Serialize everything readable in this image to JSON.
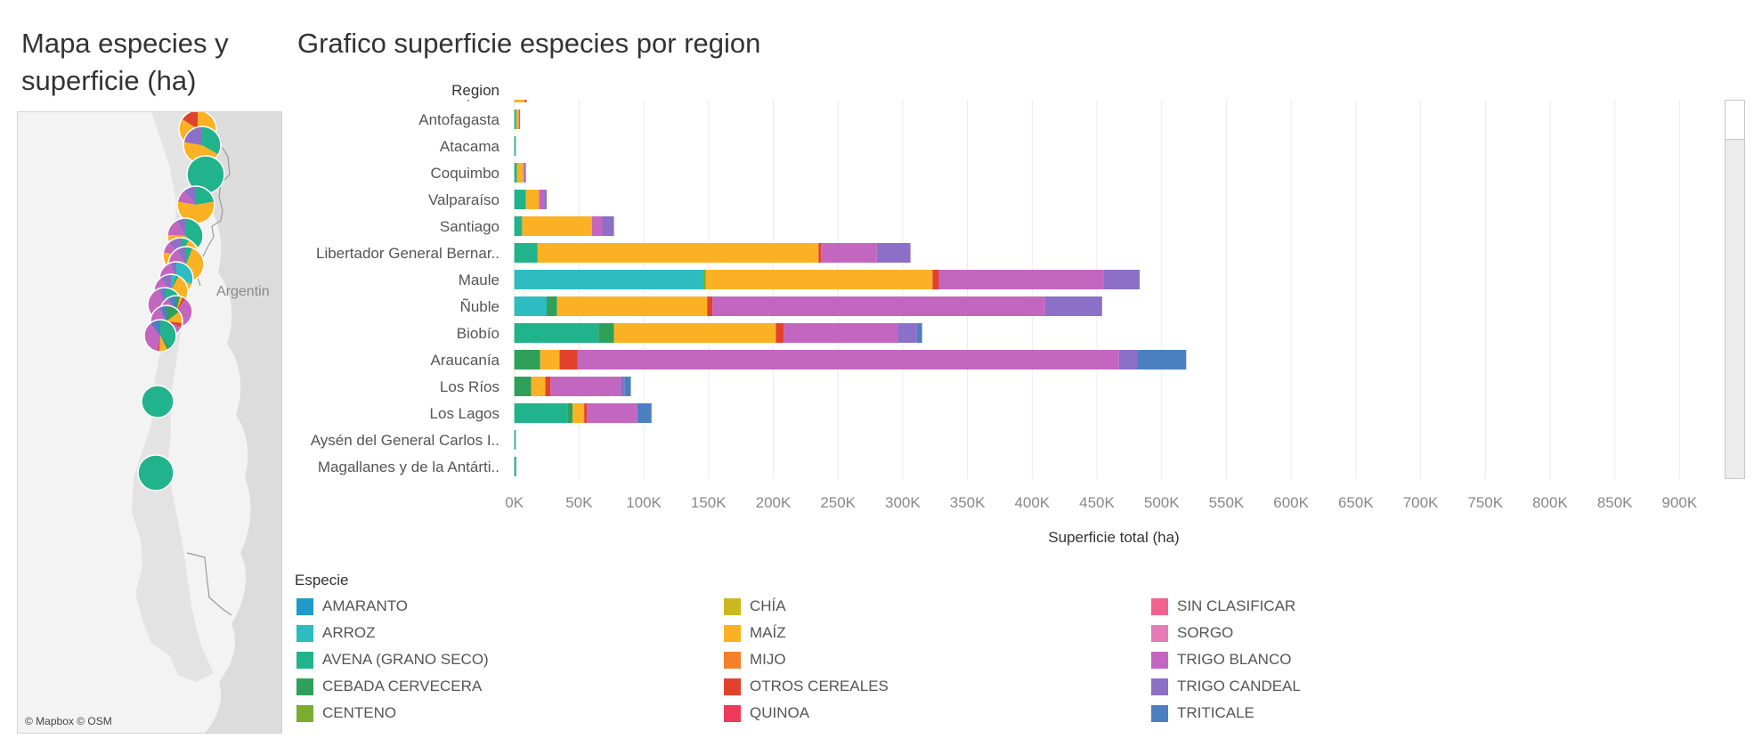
{
  "map": {
    "title": "Mapa especies y superficie (ha)",
    "country_label": "Argentin",
    "credit": "© Mapbox © OSM"
  },
  "chart_data": {
    "type": "bar",
    "orientation": "horizontal",
    "stacked": true,
    "title": "Grafico superficie especies por region",
    "xlabel": "Superficie total (ha)",
    "ylabel": "Region",
    "xlim": [
      -8000,
      930000
    ],
    "xticks": [
      0,
      50000,
      100000,
      150000,
      200000,
      250000,
      300000,
      350000,
      400000,
      450000,
      500000,
      550000,
      600000,
      650000,
      700000,
      750000,
      800000,
      850000,
      900000
    ],
    "xtick_labels": [
      "0K",
      "50K",
      "100K",
      "150K",
      "200K",
      "250K",
      "300K",
      "350K",
      "400K",
      "450K",
      "500K",
      "550K",
      "600K",
      "650K",
      "700K",
      "750K",
      "800K",
      "850K",
      "900K"
    ],
    "grid": true,
    "legend_title": "Especie",
    "legend_position": "bottom",
    "categories": [
      "Tarapacá",
      "Antofagasta",
      "Atacama",
      "Coquimbo",
      "Valparaíso",
      "Santiago",
      "Libertador General Bernar..",
      "Maule",
      "Ñuble",
      "Biobío",
      "Araucanía",
      "Los Ríos",
      "Los Lagos",
      "Aysén del General Carlos I..",
      "Magallanes y de la Antárti.."
    ],
    "series": [
      {
        "name": "AMARANTO",
        "color": "#1f9ac9",
        "values": [
          0,
          0,
          0,
          0,
          0,
          0,
          0,
          0,
          0,
          0,
          0,
          0,
          0,
          0,
          0
        ]
      },
      {
        "name": "ARROZ",
        "color": "#2dbdc0",
        "values": [
          0,
          0,
          0,
          0,
          0,
          0,
          0,
          146000,
          25000,
          0,
          0,
          0,
          0,
          0,
          0
        ]
      },
      {
        "name": "AVENA (GRANO SECO)",
        "color": "#21b38b",
        "values": [
          0,
          1500,
          1200,
          2000,
          9000,
          6000,
          18000,
          0,
          0,
          65000,
          0,
          0,
          41000,
          1200,
          1500
        ]
      },
      {
        "name": "CEBADA CERVECERA",
        "color": "#2ea05a",
        "values": [
          0,
          0,
          0,
          0,
          0,
          0,
          0,
          0,
          8000,
          12000,
          20000,
          13000,
          4000,
          0,
          0
        ]
      },
      {
        "name": "CENTENO",
        "color": "#78ad2e",
        "values": [
          0,
          0,
          0,
          0,
          0,
          0,
          0,
          2000,
          0,
          0,
          0,
          0,
          0,
          0,
          0
        ]
      },
      {
        "name": "CHÍA",
        "color": "#c9b820",
        "values": [
          0,
          0,
          0,
          0,
          0,
          0,
          0,
          0,
          0,
          0,
          0,
          0,
          0,
          0,
          0
        ]
      },
      {
        "name": "MAÍZ",
        "color": "#fbb124",
        "values": [
          8000,
          2000,
          0,
          5000,
          10000,
          54000,
          217000,
          175000,
          116000,
          125000,
          15000,
          11000,
          9000,
          0,
          0
        ]
      },
      {
        "name": "MIJO",
        "color": "#f5802a",
        "values": [
          0,
          0,
          0,
          0,
          0,
          0,
          0,
          0,
          0,
          0,
          0,
          0,
          0,
          0,
          0
        ]
      },
      {
        "name": "OTROS CEREALES",
        "color": "#e2422c",
        "values": [
          1500,
          0,
          0,
          0,
          0,
          0,
          2000,
          5000,
          4000,
          6000,
          14000,
          4000,
          2000,
          0,
          0
        ]
      },
      {
        "name": "QUINOA",
        "color": "#ee3a59",
        "values": [
          0,
          0,
          0,
          0,
          0,
          0,
          0,
          0,
          0,
          0,
          0,
          0,
          0,
          0,
          0
        ]
      },
      {
        "name": "SIN CLASIFICAR",
        "color": "#f2638f",
        "values": [
          0,
          0,
          0,
          0,
          0,
          0,
          0,
          0,
          0,
          0,
          0,
          0,
          0,
          0,
          0
        ]
      },
      {
        "name": "SORGO",
        "color": "#e97ab8",
        "values": [
          0,
          0,
          0,
          0,
          0,
          0,
          0,
          0,
          0,
          0,
          0,
          0,
          0,
          0,
          0
        ]
      },
      {
        "name": "TRIGO BLANCO",
        "color": "#c366c0",
        "values": [
          0,
          0,
          0,
          1000,
          4000,
          8000,
          43000,
          127000,
          257000,
          88000,
          418000,
          54000,
          39000,
          0,
          0
        ]
      },
      {
        "name": "TRIGO CANDEAL",
        "color": "#8c6fc6",
        "values": [
          0,
          1000,
          0,
          1000,
          2000,
          9000,
          26000,
          28000,
          44000,
          15000,
          14000,
          3000,
          0,
          0,
          0
        ]
      },
      {
        "name": "TRITICALE",
        "color": "#4b7fc2",
        "values": [
          0,
          0,
          0,
          0,
          0,
          0,
          0,
          0,
          0,
          4000,
          38000,
          5000,
          11000,
          0,
          0
        ]
      }
    ]
  }
}
